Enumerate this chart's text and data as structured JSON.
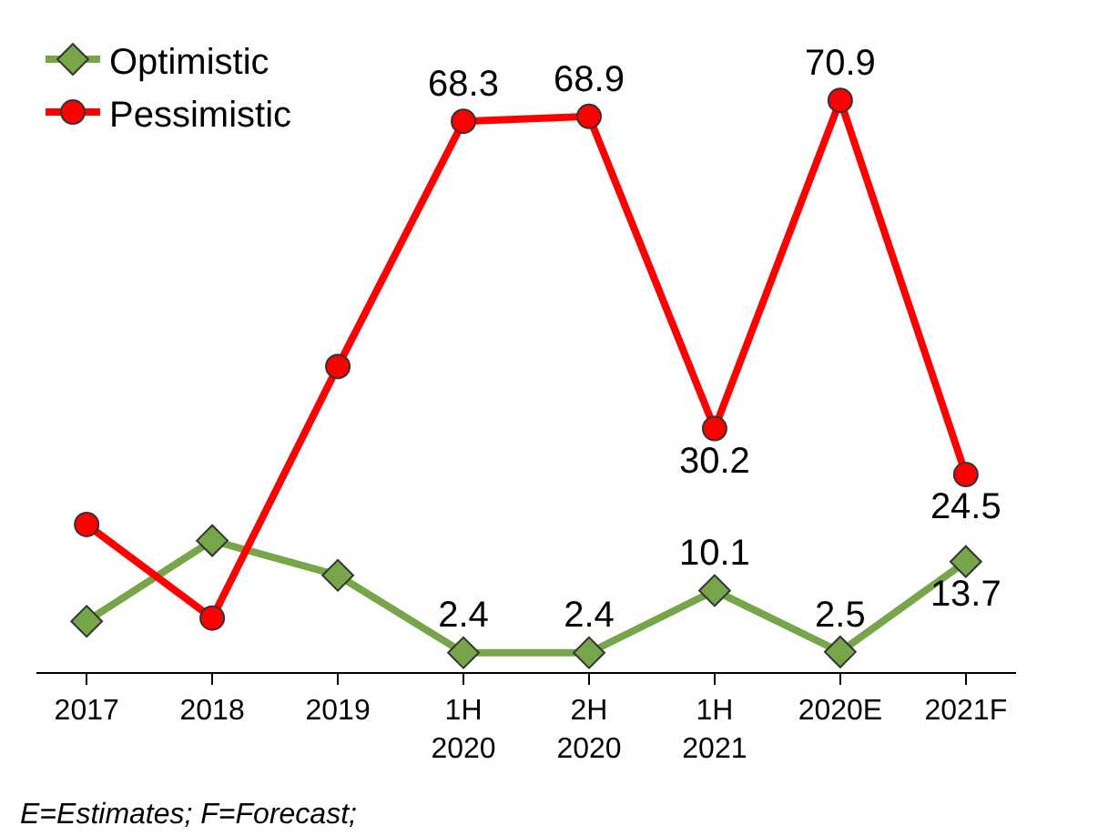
{
  "chart_data": {
    "type": "line",
    "categories": [
      "2017",
      "2018",
      "2019",
      "1H 2020",
      "2H 2020",
      "1H 2021",
      "2020E",
      "2021F"
    ],
    "series": [
      {
        "name": "Optimistic",
        "color": "#77a64a",
        "marker": "diamond",
        "values": [
          6.3,
          16.3,
          12.0,
          2.4,
          2.4,
          10.1,
          2.5,
          13.7
        ],
        "value_labels": [
          null,
          null,
          null,
          "2.4",
          "2.4",
          "10.1",
          "2.5",
          "13.7"
        ]
      },
      {
        "name": "Pessimistic",
        "color": "#ff0000",
        "marker": "circle",
        "values": [
          18.3,
          6.7,
          37.9,
          68.3,
          68.9,
          30.2,
          70.9,
          24.5
        ],
        "value_labels": [
          null,
          null,
          null,
          "68.3",
          "68.9",
          "30.2",
          "70.9",
          "24.5"
        ]
      }
    ],
    "tick_labels": "x",
    "legend": "top left",
    "line_style": "solid",
    "annotations": [
      "E=Estimates; F=Forecast;"
    ]
  }
}
